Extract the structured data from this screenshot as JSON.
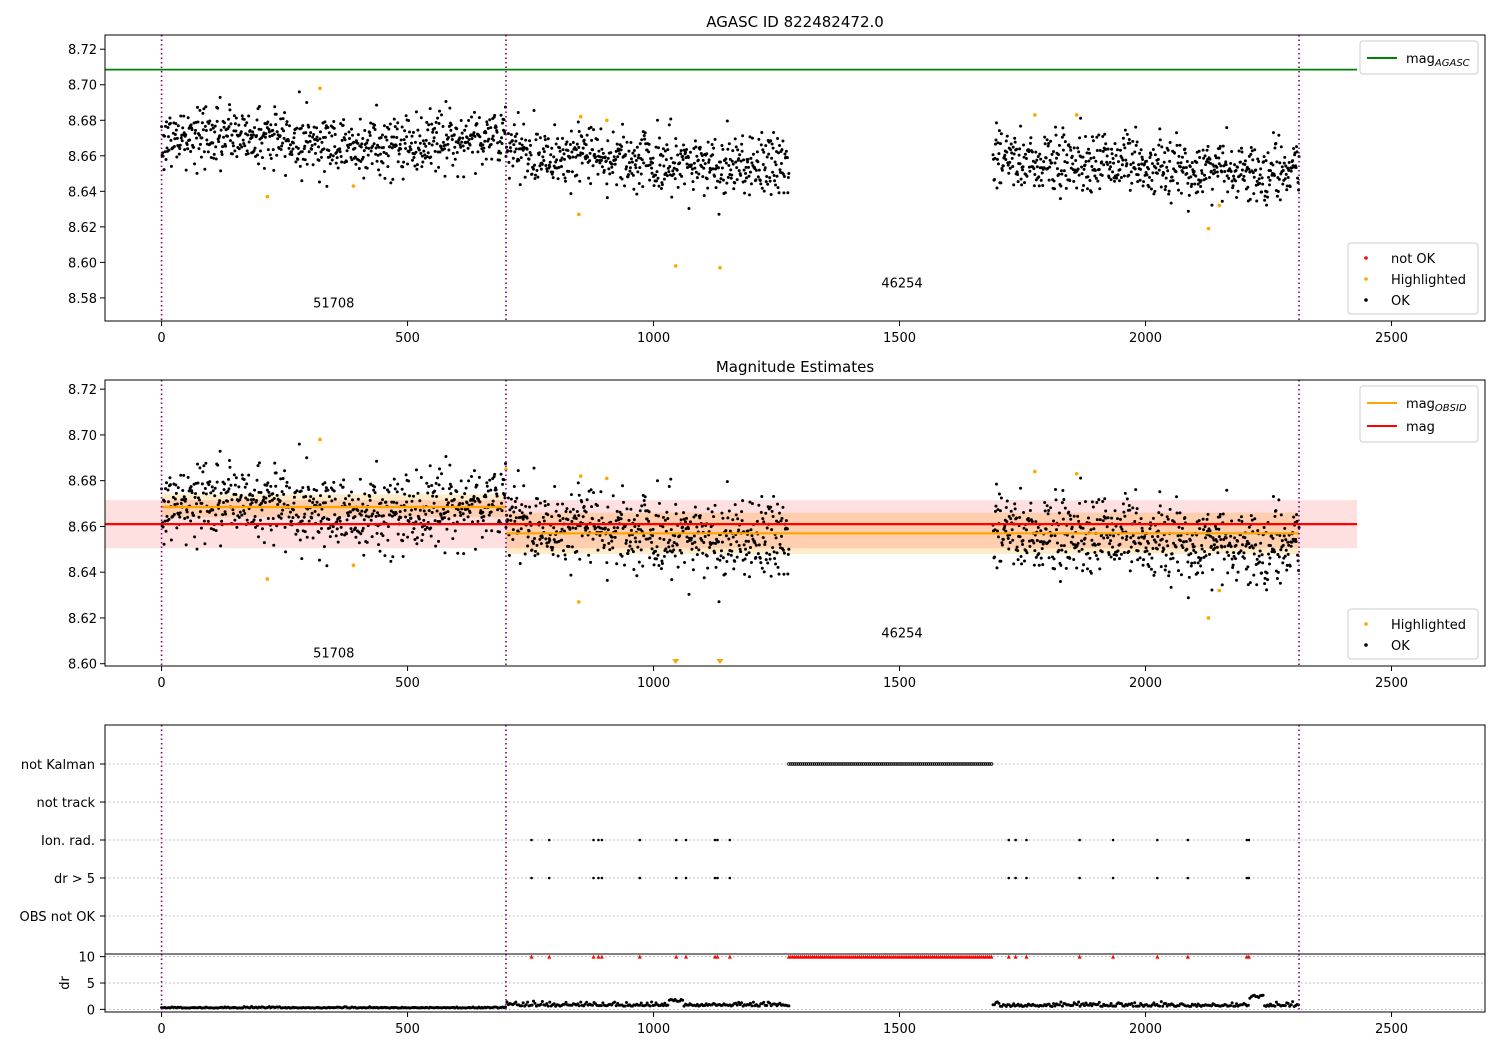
{
  "chart_data": [
    {
      "type": "scatter",
      "title": "AGASC ID 822482472.0",
      "xlim": [
        -115,
        2690
      ],
      "ylim": [
        8.567,
        8.728
      ],
      "yticks": [
        "8.58",
        "8.60",
        "8.62",
        "8.64",
        "8.66",
        "8.68",
        "8.70",
        "8.72"
      ],
      "xticks": [
        "0",
        "500",
        "1000",
        "1500",
        "2000",
        "2500"
      ],
      "xlabel": "",
      "ylabel": "",
      "grid": false,
      "vlines": [
        0,
        700,
        2312
      ],
      "obsid_labels": [
        {
          "text": "51708",
          "x": 350,
          "y": 8.5745
        },
        {
          "text": "46254",
          "x": 1505,
          "y": 8.5858
        }
      ],
      "hlines": [
        {
          "name": "AGASC",
          "y": 8.7085,
          "x0": -115,
          "x1": 2430,
          "color": "#008000"
        }
      ],
      "legend_lines": [
        {
          "label": "mag",
          "sub": "AGASC",
          "color": "#008000"
        }
      ],
      "legend_points": [
        {
          "label": "not OK",
          "color": "#ff0000"
        },
        {
          "label": "Highlighted",
          "color": "#ffa500"
        },
        {
          "label": "OK",
          "color": "#000000"
        }
      ],
      "highlighted": [
        [
          215,
          8.637
        ],
        [
          322,
          8.698
        ],
        [
          390,
          8.643
        ],
        [
          848,
          8.627
        ],
        [
          852,
          8.682
        ],
        [
          905,
          8.68
        ],
        [
          1045,
          8.598
        ],
        [
          1135,
          8.597
        ],
        [
          1775,
          8.683
        ],
        [
          1860,
          8.683
        ],
        [
          2128,
          8.619
        ],
        [
          2150,
          8.632
        ]
      ]
    },
    {
      "type": "scatter",
      "title": "Magnitude Estimates",
      "xlim": [
        -115,
        2690
      ],
      "ylim": [
        8.599,
        8.724
      ],
      "yticks": [
        "8.60",
        "8.62",
        "8.64",
        "8.66",
        "8.68",
        "8.70",
        "8.72"
      ],
      "xticks": [
        "0",
        "500",
        "1000",
        "1500",
        "2000",
        "2500"
      ],
      "xlabel": "",
      "ylabel": "",
      "grid": false,
      "vlines": [
        0,
        700,
        2312
      ],
      "obsid_labels": [
        {
          "text": "51708",
          "x": 350,
          "y": 8.6028
        },
        {
          "text": "46254",
          "x": 1505,
          "y": 8.6115
        }
      ],
      "bands": [
        {
          "x0": 0,
          "x1": 700,
          "y0": 8.664,
          "y1": 8.674,
          "color": "#ffa500",
          "opacity": 0.22
        },
        {
          "x0": 700,
          "x1": 1275,
          "y0": 8.648,
          "y1": 8.666,
          "color": "#ffa500",
          "opacity": 0.22
        },
        {
          "x0": 1275,
          "x1": 1690,
          "y0": 8.648,
          "y1": 8.666,
          "color": "#ffa500",
          "opacity": 0.22
        },
        {
          "x0": 1690,
          "x1": 2312,
          "y0": 8.648,
          "y1": 8.666,
          "color": "#ffa500",
          "opacity": 0.22
        },
        {
          "x0": -115,
          "x1": 2430,
          "y0": 8.6505,
          "y1": 8.6715,
          "color": "#ff0000",
          "opacity": 0.12
        }
      ],
      "segments": [
        {
          "x0": 0,
          "x1": 700,
          "y": 8.6685,
          "color": "#ffa500"
        },
        {
          "x0": 700,
          "x1": 2312,
          "y": 8.657,
          "color": "#ffa500"
        },
        {
          "x0": -115,
          "x1": 2430,
          "y": 8.661,
          "color": "#ff0000"
        }
      ],
      "legend_lines": [
        {
          "label": "mag",
          "sub": "OBSID",
          "color": "#ffa500"
        },
        {
          "label": "mag",
          "sub": "",
          "color": "#ff0000"
        }
      ],
      "legend_points": [
        {
          "label": "Highlighted",
          "color": "#ffa500"
        },
        {
          "label": "OK",
          "color": "#000000"
        }
      ],
      "highlighted": [
        [
          215,
          8.637
        ],
        [
          322,
          8.698
        ],
        [
          390,
          8.643
        ],
        [
          700,
          8.685
        ],
        [
          848,
          8.627
        ],
        [
          852,
          8.682
        ],
        [
          905,
          8.681
        ],
        [
          1775,
          8.684
        ],
        [
          1860,
          8.683
        ],
        [
          2128,
          8.62
        ],
        [
          2150,
          8.632
        ]
      ],
      "below_limit_markers": [
        1045,
        1135
      ]
    },
    {
      "type": "scatter",
      "title": "",
      "xlim": [
        -115,
        2690
      ],
      "xticks": [
        "0",
        "500",
        "1000",
        "1500",
        "2000",
        "2500"
      ],
      "vlines": [
        0,
        700,
        2312
      ],
      "flag_rows": [
        "not Kalman",
        "not track",
        "Ion. rad.",
        "dr > 5",
        "OBS not OK"
      ],
      "not_kalman_range": [
        1275,
        1690
      ],
      "ion_rad_x": [
        752,
        788,
        878,
        888,
        895,
        972,
        1046,
        1066,
        1125,
        1130,
        1155,
        1722,
        1736,
        1758,
        1866,
        1934,
        2024,
        2086,
        2206,
        2210
      ],
      "dr5_x": [
        752,
        788,
        878,
        888,
        895,
        972,
        1046,
        1066,
        1125,
        1130,
        1155,
        1722,
        1736,
        1758,
        1866,
        1934,
        2024,
        2086,
        2206,
        2210
      ],
      "dr": {
        "ylabel": "dr",
        "ylim": [
          -0.5,
          10.5
        ],
        "yticks": [
          "0",
          "5",
          "10"
        ],
        "cap_value": 10,
        "cap_color": "#ff0000"
      }
    }
  ]
}
